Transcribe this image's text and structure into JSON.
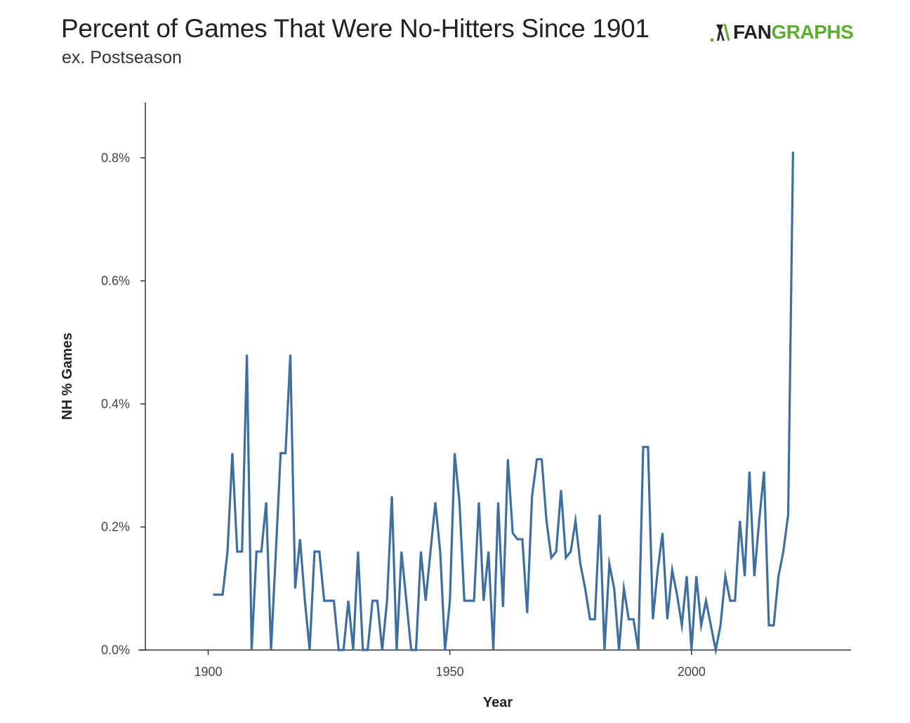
{
  "header": {
    "title": "Percent of Games That Were No-Hitters Since 1901",
    "subtitle": "ex. Postseason",
    "logo": {
      "part1": "FAN",
      "part2": "GRAPHS",
      "icon": "batter-silhouette-icon",
      "accent": "#5fad32"
    }
  },
  "chart_data": {
    "type": "line",
    "title": "Percent of Games That Were No-Hitters Since 1901",
    "subtitle": "ex. Postseason",
    "xlabel": "Year",
    "ylabel": "NH % Games",
    "xlim": [
      1887,
      2033
    ],
    "ylim": [
      0,
      0.89
    ],
    "x_ticks": [
      1900,
      1950,
      2000
    ],
    "y_ticks": [
      0,
      0.2,
      0.4,
      0.6,
      0.8
    ],
    "y_tick_labels": [
      "0.0%",
      "0.2%",
      "0.4%",
      "0.6%",
      "0.8%"
    ],
    "x_tick_labels": [
      "1900",
      "1950",
      "2000"
    ],
    "line_color": "#3e6f9e",
    "grid": false,
    "series": [
      {
        "x": [
          1901,
          1902,
          1903,
          1904,
          1905,
          1906,
          1907,
          1908,
          1909,
          1910,
          1911,
          1912,
          1913,
          1914,
          1915,
          1916,
          1917,
          1918,
          1919,
          1920,
          1921,
          1922,
          1923,
          1924,
          1925,
          1926,
          1927,
          1928,
          1929,
          1930,
          1931,
          1932,
          1933,
          1934,
          1935,
          1936,
          1937,
          1938,
          1939,
          1940,
          1941,
          1942,
          1943,
          1944,
          1945,
          1946,
          1947,
          1948,
          1949,
          1950,
          1951,
          1952,
          1953,
          1954,
          1955,
          1956,
          1957,
          1958,
          1959,
          1960,
          1961,
          1962,
          1963,
          1964,
          1965,
          1966,
          1967,
          1968,
          1969,
          1970,
          1971,
          1972,
          1973,
          1974,
          1975,
          1976,
          1977,
          1978,
          1979,
          1980,
          1981,
          1982,
          1983,
          1984,
          1985,
          1986,
          1987,
          1988,
          1989,
          1990,
          1991,
          1992,
          1993,
          1994,
          1995,
          1996,
          1997,
          1998,
          1999,
          2000,
          2001,
          2002,
          2003,
          2004,
          2005,
          2006,
          2007,
          2008,
          2009,
          2010,
          2011,
          2012,
          2013,
          2014,
          2015,
          2016,
          2017,
          2018,
          2019,
          2020,
          2021
        ],
        "values": [
          0.09,
          0.09,
          0.09,
          0.16,
          0.32,
          0.16,
          0.16,
          0.48,
          0.0,
          0.16,
          0.16,
          0.24,
          0.0,
          0.16,
          0.32,
          0.32,
          0.48,
          0.1,
          0.18,
          0.08,
          0.0,
          0.16,
          0.16,
          0.08,
          0.08,
          0.08,
          0.0,
          0.0,
          0.08,
          0.0,
          0.16,
          0.0,
          0.0,
          0.08,
          0.08,
          0.0,
          0.08,
          0.25,
          0.0,
          0.16,
          0.08,
          0.0,
          0.0,
          0.16,
          0.08,
          0.16,
          0.24,
          0.16,
          0.0,
          0.08,
          0.32,
          0.24,
          0.08,
          0.08,
          0.08,
          0.24,
          0.08,
          0.16,
          0.0,
          0.24,
          0.07,
          0.31,
          0.19,
          0.18,
          0.18,
          0.06,
          0.25,
          0.31,
          0.31,
          0.21,
          0.15,
          0.16,
          0.26,
          0.15,
          0.16,
          0.21,
          0.14,
          0.1,
          0.05,
          0.05,
          0.22,
          0.0,
          0.14,
          0.1,
          0.0,
          0.1,
          0.05,
          0.05,
          0.0,
          0.33,
          0.33,
          0.05,
          0.13,
          0.19,
          0.05,
          0.13,
          0.09,
          0.04,
          0.12,
          0.0,
          0.12,
          0.04,
          0.08,
          0.04,
          0.0,
          0.04,
          0.12,
          0.08,
          0.08,
          0.21,
          0.12,
          0.29,
          0.12,
          0.21,
          0.29,
          0.04,
          0.04,
          0.12,
          0.16,
          0.22,
          0.81
        ]
      }
    ]
  }
}
